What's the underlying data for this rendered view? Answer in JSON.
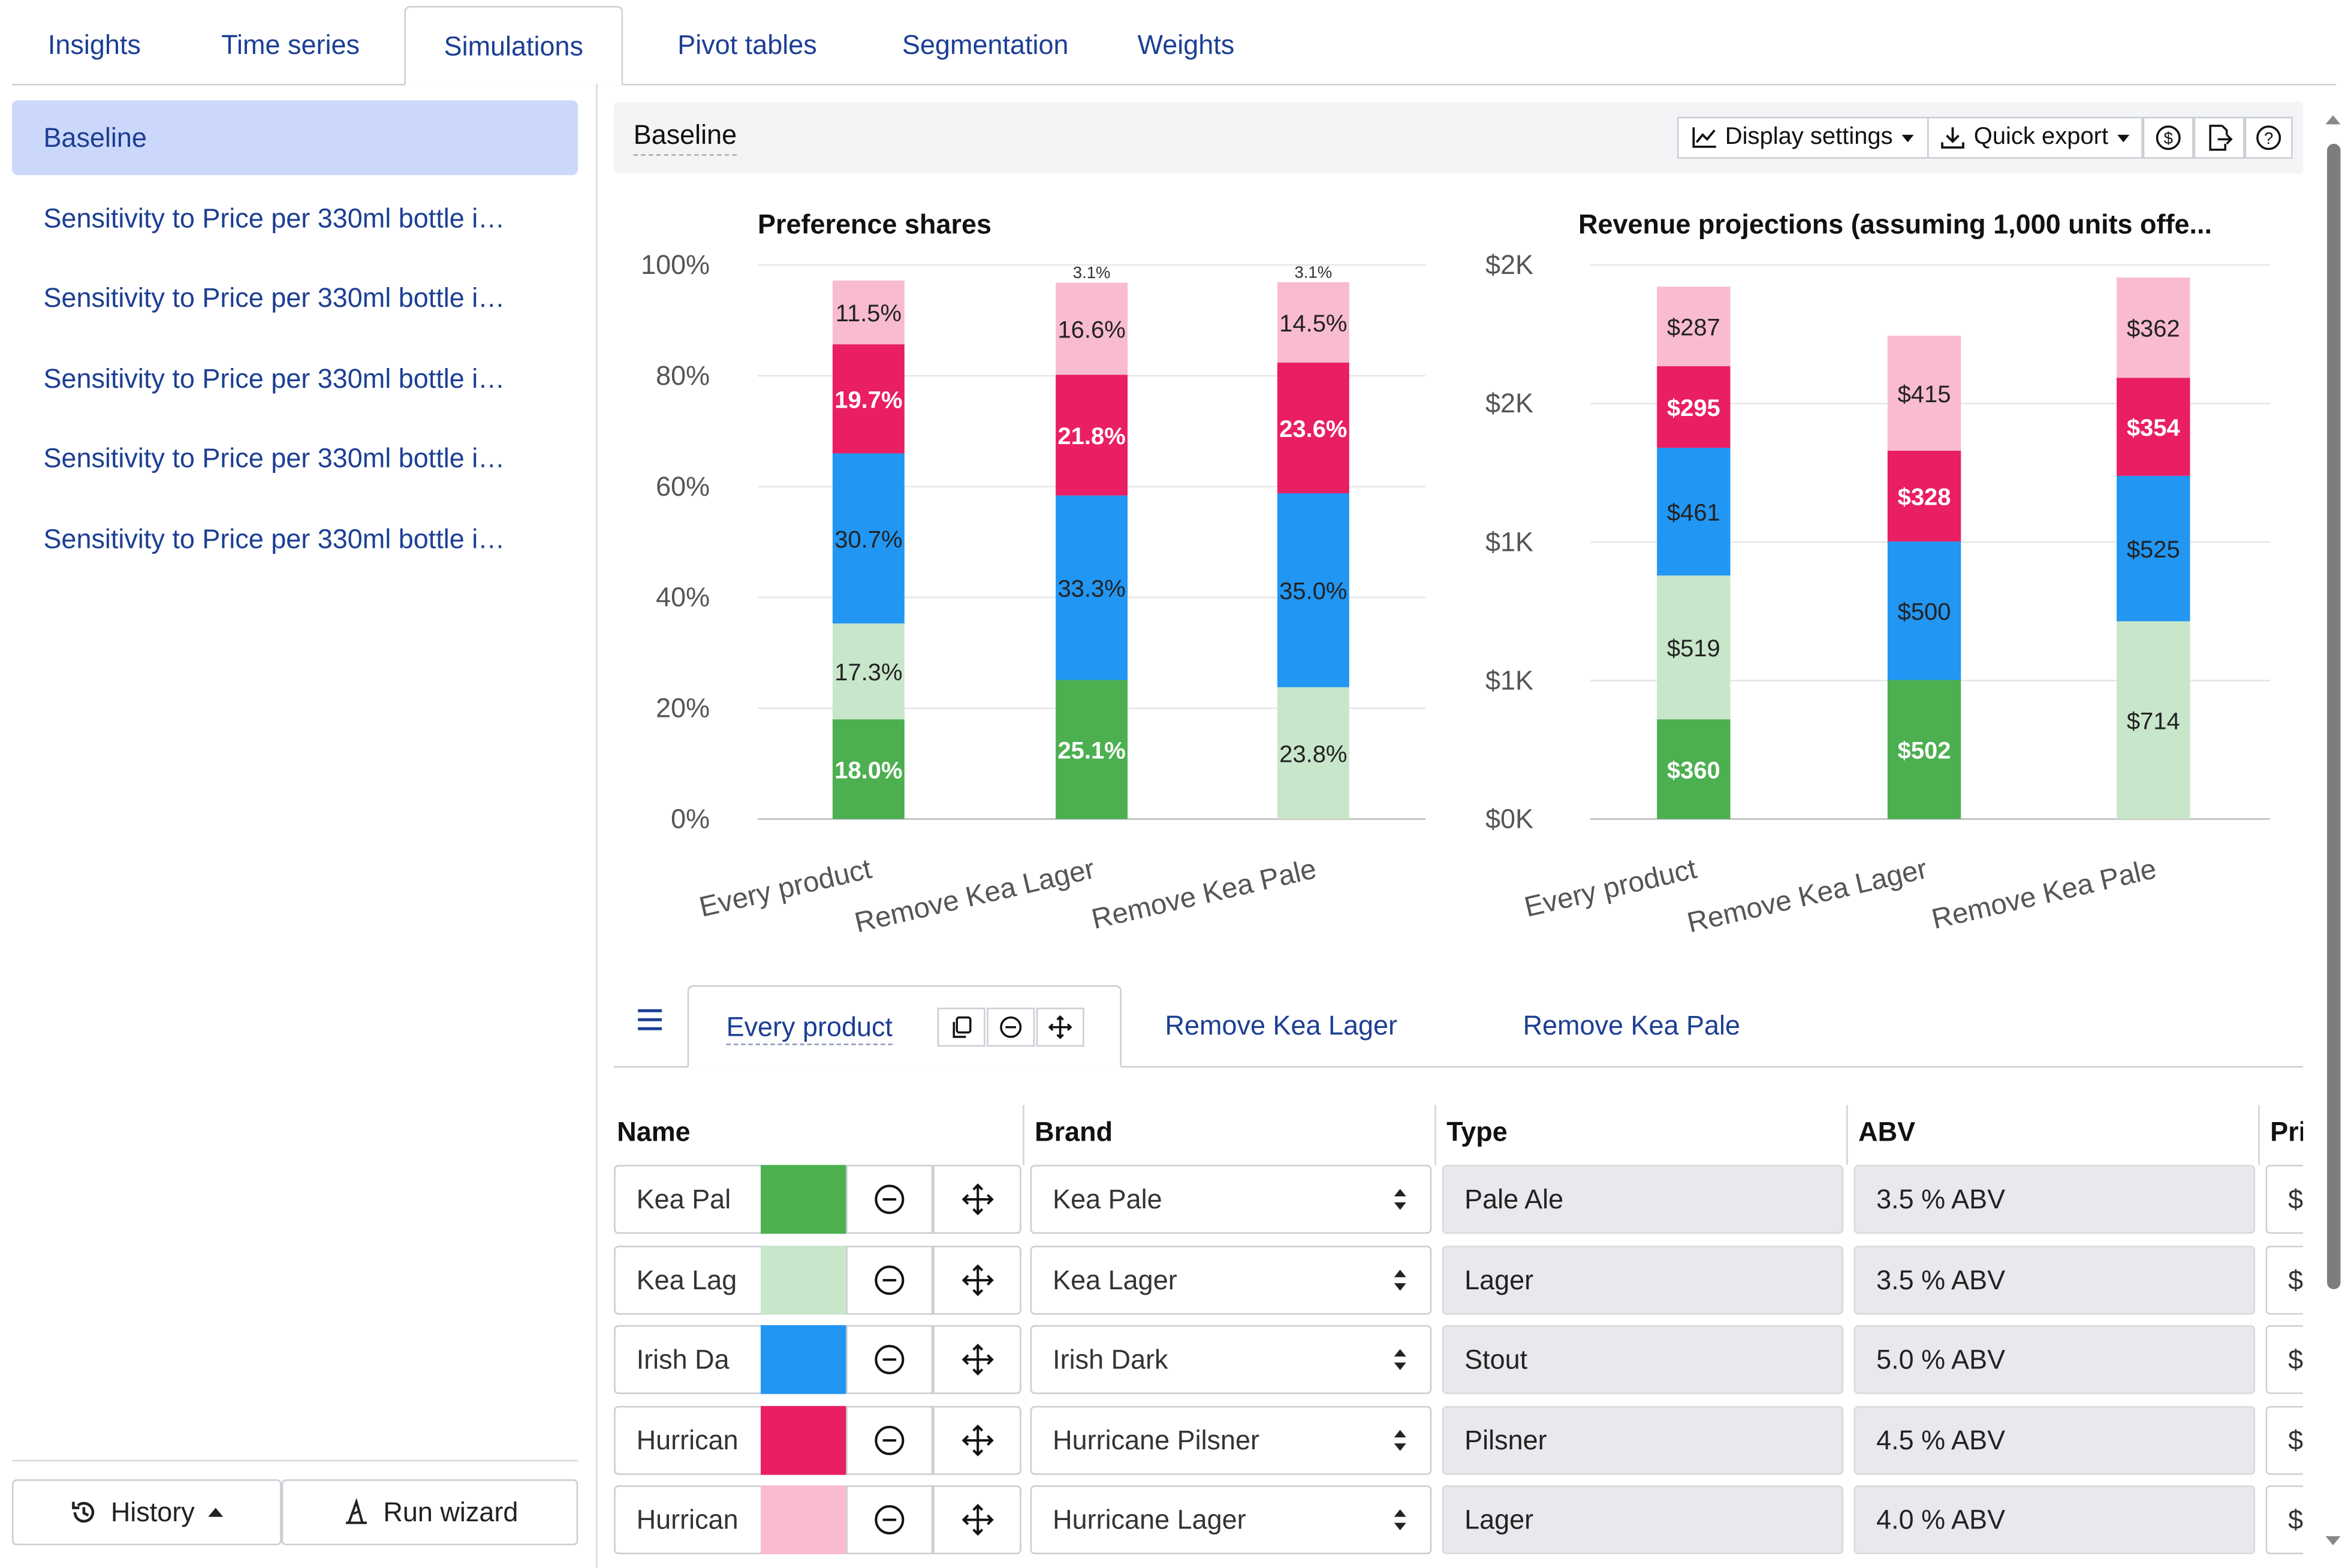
{
  "tabs": [
    {
      "label": "Insights",
      "active": false
    },
    {
      "label": "Time series",
      "active": false
    },
    {
      "label": "Simulations",
      "active": true
    },
    {
      "label": "Pivot tables",
      "active": false
    },
    {
      "label": "Segmentation",
      "active": false
    },
    {
      "label": "Weights",
      "active": false
    }
  ],
  "sidebar": {
    "scenarios": [
      {
        "label": "Baseline",
        "active": true
      },
      {
        "label": "Sensitivity to Price per 330ml bottle i…",
        "active": false
      },
      {
        "label": "Sensitivity to Price per 330ml bottle i…",
        "active": false
      },
      {
        "label": "Sensitivity to Price per 330ml bottle i…",
        "active": false
      },
      {
        "label": "Sensitivity to Price per 330ml bottle i…",
        "active": false
      },
      {
        "label": "Sensitivity to Price per 330ml bottle i…",
        "active": false
      }
    ],
    "history_label": "History",
    "run_wizard_label": "Run wizard",
    "icons": {
      "history": "history-icon",
      "caret": "caret-up-icon",
      "wizard": "wizard-hat-icon"
    }
  },
  "panel": {
    "title": "Baseline",
    "display_settings_label": "Display settings",
    "quick_export_label": "Quick export",
    "icons": {
      "display": "line-chart-icon",
      "export": "download-icon",
      "currency": "dollar-circle-icon",
      "share": "export-file-icon",
      "help": "help-icon"
    }
  },
  "colors": {
    "kea_pale": "#4caf50",
    "kea_lager": "#c8e6c9",
    "irish_dark": "#2196f3",
    "hurricane_pilsner": "#e91e63",
    "hurricane_lager": "#f8bbd0",
    "accent": "#1c3f94",
    "selected_bg": "#ccd8fb"
  },
  "chart_data": [
    {
      "type": "bar",
      "stacked": true,
      "title": "Preference shares",
      "categories": [
        "Every product",
        "Remove Kea Lager",
        "Remove Kea Pale"
      ],
      "y_ticks": [
        "0%",
        "20%",
        "40%",
        "60%",
        "80%",
        "100%"
      ],
      "ylim": [
        0,
        100
      ],
      "series": [
        {
          "color": "#4caf50",
          "values": [
            18.0,
            25.1,
            0
          ],
          "labels": [
            "18.0%",
            "25.1%",
            ""
          ]
        },
        {
          "color": "#c8e6c9",
          "values": [
            17.3,
            0,
            23.8
          ],
          "labels": [
            "17.3%",
            "",
            "23.8%"
          ]
        },
        {
          "color": "#2196f3",
          "values": [
            30.7,
            33.3,
            35.0
          ],
          "labels": [
            "30.7%",
            "33.3%",
            "35.0%"
          ]
        },
        {
          "color": "#e91e63",
          "values": [
            19.7,
            21.8,
            23.6
          ],
          "labels": [
            "19.7%",
            "21.8%",
            "23.6%"
          ]
        },
        {
          "color": "#f8bbd0",
          "values": [
            11.5,
            16.6,
            14.5
          ],
          "labels": [
            "11.5%",
            "16.6%",
            "14.5%"
          ]
        }
      ],
      "top_labels": [
        "",
        "3.1%",
        "3.1%"
      ]
    },
    {
      "type": "bar",
      "stacked": true,
      "title": "Revenue projections (assuming 1,000 units offe...",
      "categories": [
        "Every product",
        "Remove Kea Lager",
        "Remove Kea Pale"
      ],
      "y_ticks": [
        "$0K",
        "$1K",
        "$1K",
        "$2K",
        "$2K"
      ],
      "ylim": [
        0,
        2000
      ],
      "series": [
        {
          "color": "#4caf50",
          "values": [
            360,
            502,
            0
          ],
          "labels": [
            "$360",
            "$502",
            ""
          ]
        },
        {
          "color": "#c8e6c9",
          "values": [
            519,
            0,
            714
          ],
          "labels": [
            "$519",
            "",
            "$714"
          ]
        },
        {
          "color": "#2196f3",
          "values": [
            461,
            500,
            525
          ],
          "labels": [
            "$461",
            "$500",
            "$525"
          ]
        },
        {
          "color": "#e91e63",
          "values": [
            295,
            328,
            354
          ],
          "labels": [
            "$295",
            "$328",
            "$354"
          ]
        },
        {
          "color": "#f8bbd0",
          "values": [
            287,
            415,
            362
          ],
          "labels": [
            "$287",
            "$415",
            "$362"
          ]
        }
      ]
    }
  ],
  "config_tabs": [
    {
      "label": "Every product",
      "active": true
    },
    {
      "label": "Remove Kea Lager",
      "active": false
    },
    {
      "label": "Remove Kea Pale",
      "active": false
    }
  ],
  "table": {
    "headers": {
      "name": "Name",
      "brand": "Brand",
      "type": "Type",
      "abv": "ABV",
      "price": "Pri"
    },
    "rows": [
      {
        "name": "Kea Pal",
        "color": "#4caf50",
        "brand": "Kea Pale",
        "type": "Pale Ale",
        "abv": "3.5 % ABV",
        "price": "$"
      },
      {
        "name": "Kea Lag",
        "color": "#c8e6c9",
        "brand": "Kea Lager",
        "type": "Lager",
        "abv": "3.5 % ABV",
        "price": "$"
      },
      {
        "name": "Irish Da",
        "color": "#2196f3",
        "brand": "Irish Dark",
        "type": "Stout",
        "abv": "5.0 % ABV",
        "price": "$"
      },
      {
        "name": "Hurrican",
        "color": "#e91e63",
        "brand": "Hurricane Pilsner",
        "type": "Pilsner",
        "abv": "4.5 % ABV",
        "price": "$"
      },
      {
        "name": "Hurrican",
        "color": "#f8bbd0",
        "brand": "Hurricane Lager",
        "type": "Lager",
        "abv": "4.0 % ABV",
        "price": "$"
      }
    ]
  }
}
